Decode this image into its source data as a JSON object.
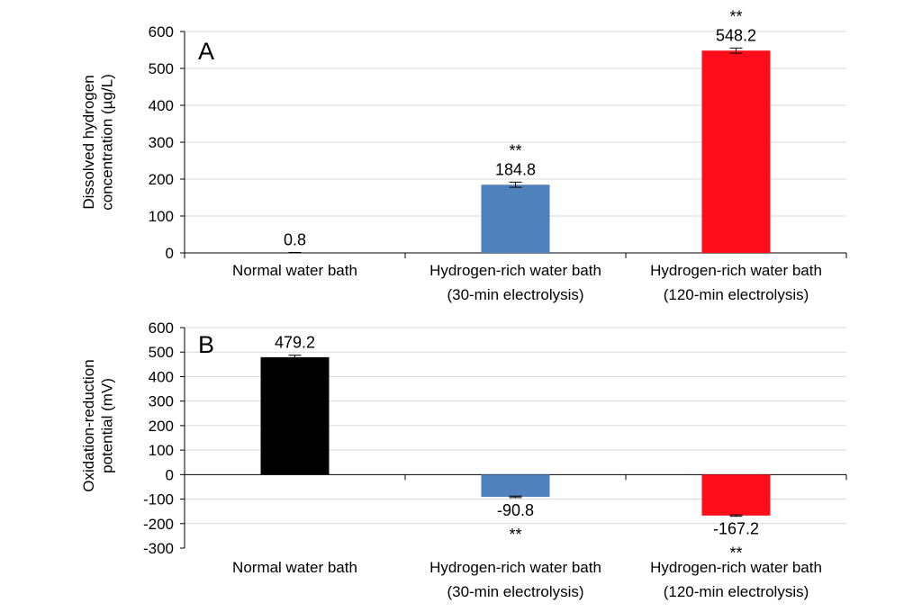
{
  "chart_data": [
    {
      "type": "bar",
      "panel_label": "A",
      "categories": [
        [
          "Normal water bath"
        ],
        [
          "Hydrogen-rich water bath",
          "(30-min electrolysis)"
        ],
        [
          "Hydrogen-rich water bath",
          "(120-min electrolysis)"
        ]
      ],
      "values": [
        0.8,
        184.8,
        548.2
      ],
      "errors": [
        0.5,
        7,
        7
      ],
      "data_labels": [
        "0.8",
        "184.8",
        "548.2"
      ],
      "significance": [
        "",
        "**",
        "**"
      ],
      "colors": [
        "#000000",
        "#4f81bd",
        "#ff0d1a"
      ],
      "ylabel": [
        "Dissolved hydrogen",
        "concentration (µg/L)"
      ],
      "ylim": [
        0,
        600
      ],
      "yticks": [
        0,
        100,
        200,
        300,
        400,
        500,
        600
      ],
      "grid": true
    },
    {
      "type": "bar",
      "panel_label": "B",
      "categories": [
        [
          "Normal water bath"
        ],
        [
          "Hydrogen-rich water bath",
          "(30-min electrolysis)"
        ],
        [
          "Hydrogen-rich water bath",
          "(120-min electrolysis)"
        ]
      ],
      "values": [
        479.2,
        -90.8,
        -167.2
      ],
      "errors": [
        8,
        3,
        3
      ],
      "data_labels": [
        "479.2",
        "-90.8",
        "-167.2"
      ],
      "significance": [
        "",
        "**",
        "**"
      ],
      "colors": [
        "#000000",
        "#4f81bd",
        "#ff0d1a"
      ],
      "ylabel": [
        "Oxidation-reduction",
        "potential (mV)"
      ],
      "ylim": [
        -300,
        600
      ],
      "yticks": [
        -300,
        -200,
        -100,
        0,
        100,
        200,
        300,
        400,
        500,
        600
      ],
      "grid": true
    }
  ]
}
